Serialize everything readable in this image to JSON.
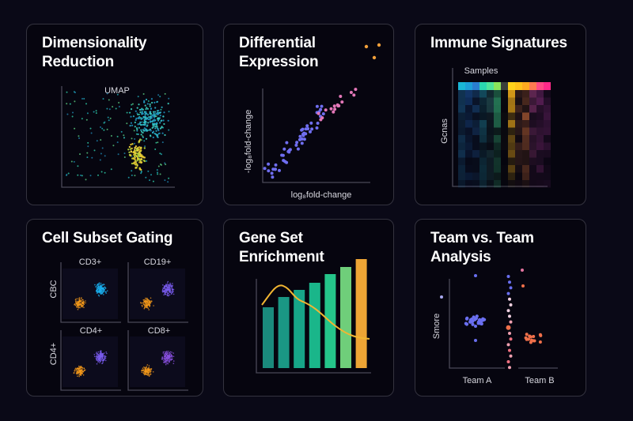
{
  "cards": [
    {
      "title_line1": "Dimensionality",
      "title_line2": "Reduction",
      "plot_label": "UMAP"
    },
    {
      "title_line1": "Differential",
      "title_line2": "Expression",
      "x_label": "log₈fold-change",
      "y_label": "-log₈fold-change"
    },
    {
      "title_line1": "Immune Signatures",
      "x_label": "Samples",
      "y_label": "Gcnas"
    },
    {
      "title_line1": "Cell Subset Gating",
      "panels": [
        "CD3+",
        "CD19+",
        "CD4+",
        "CD8+"
      ],
      "row_labels": [
        "CBC",
        "CD4+"
      ]
    },
    {
      "title_line1": "Gene Set",
      "title_line2": "Enrichmenıt",
      "bar_colors": [
        "#1a8a7c",
        "#1a9784",
        "#17a588",
        "#1ab68a",
        "#25c58a",
        "#6fce7a",
        "#eea535"
      ],
      "curve_color": "#f2b632"
    },
    {
      "title_line1": "Team vs. Team",
      "title_line2": "Analysis",
      "y_label": "Smore",
      "groups": [
        "Team A",
        "Team B"
      ],
      "group_colors": [
        "#6a6ff0",
        "#f0704a"
      ]
    }
  ],
  "colors": {
    "background": "#0a0917",
    "card": "#06050f",
    "border": "#34333f"
  }
}
